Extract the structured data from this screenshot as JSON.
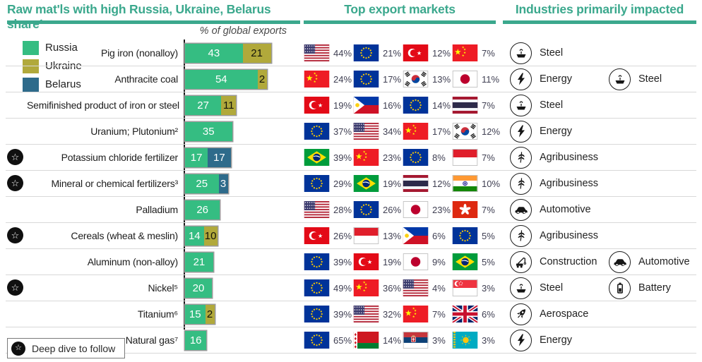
{
  "colors": {
    "accent": "#3BA88D",
    "russia": "#35BD82",
    "ukraine": "#B1A93B",
    "belarus": "#2E6B8B",
    "separator": "#d8d8d8"
  },
  "headers": {
    "col1": "Raw mat'ls with high Russia, Ukraine, Belarus share¹",
    "col2": "Top export markets",
    "col3": "Industries primarily impacted"
  },
  "axis_label": "% of global exports",
  "legend": [
    {
      "label": "Russia",
      "color": "#35BD82"
    },
    {
      "label": "Ukraine",
      "color": "#B1A93B"
    },
    {
      "label": "Belarus",
      "color": "#2E6B8B"
    }
  ],
  "footer": {
    "label": "Deep dive to follow",
    "icon": "deep-dive-star-icon"
  },
  "rows": [
    {
      "starred": false,
      "material": "Pig iron (nonalloy)",
      "segments": [
        {
          "country": "Russia",
          "value": 43
        },
        {
          "country": "Ukraine",
          "value": 21
        }
      ],
      "markets": [
        {
          "flag": "us",
          "share": "44%"
        },
        {
          "flag": "eu",
          "share": "21%"
        },
        {
          "flag": "tr",
          "share": "12%"
        },
        {
          "flag": "cn",
          "share": "7%"
        }
      ],
      "industries": [
        {
          "icon": "steel",
          "label": "Steel"
        }
      ]
    },
    {
      "starred": false,
      "material": "Anthracite coal",
      "segments": [
        {
          "country": "Russia",
          "value": 54
        },
        {
          "country": "Ukraine",
          "value": 2
        }
      ],
      "markets": [
        {
          "flag": "cn",
          "share": "24%"
        },
        {
          "flag": "eu",
          "share": "17%"
        },
        {
          "flag": "kr",
          "share": "13%"
        },
        {
          "flag": "jp",
          "share": "11%"
        }
      ],
      "industries": [
        {
          "icon": "energy",
          "label": "Energy"
        },
        {
          "icon": "steel",
          "label": "Steel"
        }
      ]
    },
    {
      "starred": false,
      "material": "Semifinished product of iron or steel",
      "segments": [
        {
          "country": "Russia",
          "value": 27
        },
        {
          "country": "Ukraine",
          "value": 11
        }
      ],
      "markets": [
        {
          "flag": "tr",
          "share": "19%"
        },
        {
          "flag": "ph",
          "share": "16%"
        },
        {
          "flag": "eu",
          "share": "14%"
        },
        {
          "flag": "th",
          "share": "7%"
        }
      ],
      "industries": [
        {
          "icon": "steel",
          "label": "Steel"
        }
      ]
    },
    {
      "starred": false,
      "material": "Uranium; Plutonium²",
      "segments": [
        {
          "country": "Russia",
          "value": 35
        }
      ],
      "markets": [
        {
          "flag": "eu",
          "share": "37%"
        },
        {
          "flag": "us",
          "share": "34%"
        },
        {
          "flag": "cn",
          "share": "17%"
        },
        {
          "flag": "kr",
          "share": "12%"
        }
      ],
      "industries": [
        {
          "icon": "energy",
          "label": "Energy"
        }
      ]
    },
    {
      "starred": true,
      "material": "Potassium chloride fertilizer",
      "segments": [
        {
          "country": "Russia",
          "value": 17
        },
        {
          "country": "Belarus",
          "value": 17
        }
      ],
      "markets": [
        {
          "flag": "br",
          "share": "39%"
        },
        {
          "flag": "cn",
          "share": "23%"
        },
        {
          "flag": "eu",
          "share": "8%"
        },
        {
          "flag": "id",
          "share": "7%"
        }
      ],
      "industries": [
        {
          "icon": "agribusiness",
          "label": "Agribusiness"
        }
      ]
    },
    {
      "starred": true,
      "material": "Mineral or chemical fertilizers³",
      "segments": [
        {
          "country": "Russia",
          "value": 25
        },
        {
          "country": "Belarus",
          "value": 3
        }
      ],
      "markets": [
        {
          "flag": "eu",
          "share": "29%"
        },
        {
          "flag": "br",
          "share": "19%"
        },
        {
          "flag": "th",
          "share": "12%"
        },
        {
          "flag": "in",
          "share": "10%"
        }
      ],
      "industries": [
        {
          "icon": "agribusiness",
          "label": "Agribusiness"
        }
      ]
    },
    {
      "starred": false,
      "material": "Palladium",
      "segments": [
        {
          "country": "Russia",
          "value": 26
        }
      ],
      "markets": [
        {
          "flag": "us",
          "share": "28%"
        },
        {
          "flag": "eu",
          "share": "26%"
        },
        {
          "flag": "jp",
          "share": "23%"
        },
        {
          "flag": "hk",
          "share": "7%"
        }
      ],
      "industries": [
        {
          "icon": "automotive",
          "label": "Automotive"
        }
      ]
    },
    {
      "starred": true,
      "material": "Cereals (wheat & meslin)",
      "segments": [
        {
          "country": "Russia",
          "value": 14
        },
        {
          "country": "Ukraine",
          "value": 10
        }
      ],
      "markets": [
        {
          "flag": "tr",
          "share": "26%"
        },
        {
          "flag": "id",
          "share": "13%"
        },
        {
          "flag": "ph",
          "share": "6%"
        },
        {
          "flag": "eu",
          "share": "5%"
        }
      ],
      "industries": [
        {
          "icon": "agribusiness",
          "label": "Agribusiness"
        }
      ]
    },
    {
      "starred": false,
      "material": "Aluminum (non-alloy)",
      "segments": [
        {
          "country": "Russia",
          "value": 21
        }
      ],
      "markets": [
        {
          "flag": "eu",
          "share": "39%"
        },
        {
          "flag": "tr",
          "share": "19%"
        },
        {
          "flag": "jp",
          "share": "9%"
        },
        {
          "flag": "br",
          "share": "5%"
        }
      ],
      "industries": [
        {
          "icon": "construction",
          "label": "Construction"
        },
        {
          "icon": "automotive",
          "label": "Automotive"
        }
      ]
    },
    {
      "starred": true,
      "material": "Nickel⁵",
      "segments": [
        {
          "country": "Russia",
          "value": 20
        }
      ],
      "markets": [
        {
          "flag": "eu",
          "share": "49%"
        },
        {
          "flag": "cn",
          "share": "36%"
        },
        {
          "flag": "us",
          "share": "4%"
        },
        {
          "flag": "sg",
          "share": "3%"
        }
      ],
      "industries": [
        {
          "icon": "steel",
          "label": "Steel"
        },
        {
          "icon": "battery",
          "label": "Battery"
        }
      ]
    },
    {
      "starred": false,
      "material": "Titanium⁶",
      "segments": [
        {
          "country": "Russia",
          "value": 15
        },
        {
          "country": "Ukraine",
          "value": 2
        }
      ],
      "markets": [
        {
          "flag": "eu",
          "share": "39%"
        },
        {
          "flag": "us",
          "share": "32%"
        },
        {
          "flag": "cn",
          "share": "7%"
        },
        {
          "flag": "gb",
          "share": "6%"
        }
      ],
      "industries": [
        {
          "icon": "aerospace",
          "label": "Aerospace"
        }
      ]
    },
    {
      "starred": false,
      "material": "Natural gas⁷",
      "segments": [
        {
          "country": "Russia",
          "value": 16
        }
      ],
      "markets": [
        {
          "flag": "eu",
          "share": "65%"
        },
        {
          "flag": "by",
          "share": "14%"
        },
        {
          "flag": "rs",
          "share": "3%"
        },
        {
          "flag": "kz",
          "share": "3%"
        }
      ],
      "industries": [
        {
          "icon": "energy",
          "label": "Energy"
        }
      ]
    }
  ],
  "chart_data": {
    "type": "bar",
    "orientation": "horizontal",
    "stacked": true,
    "title": "Raw mat'ls with high Russia, Ukraine, Belarus share¹",
    "value_label": "% of global exports",
    "xlim": [
      0,
      70
    ],
    "grid": false,
    "legend_position": "top-left",
    "legend": [
      "Russia",
      "Ukraine",
      "Belarus"
    ],
    "categories": [
      "Pig iron (nonalloy)",
      "Anthracite coal",
      "Semifinished product of iron or steel",
      "Uranium; Plutonium²",
      "Potassium chloride fertilizer",
      "Mineral or chemical fertilizers³",
      "Palladium",
      "Cereals (wheat & meslin)",
      "Aluminum (non-alloy)",
      "Nickel⁵",
      "Titanium⁶",
      "Natural gas⁷"
    ],
    "series": [
      {
        "name": "Russia",
        "values": [
          43,
          54,
          27,
          35,
          17,
          25,
          26,
          14,
          21,
          20,
          15,
          16
        ]
      },
      {
        "name": "Ukraine",
        "values": [
          21,
          2,
          11,
          0,
          0,
          0,
          0,
          10,
          0,
          0,
          2,
          0
        ]
      },
      {
        "name": "Belarus",
        "values": [
          0,
          0,
          0,
          0,
          17,
          3,
          0,
          0,
          0,
          0,
          0,
          0
        ]
      }
    ],
    "deep_dive_flagged": [
      "Potassium chloride fertilizer",
      "Mineral or chemical fertilizers³",
      "Cereals (wheat & meslin)",
      "Nickel⁵"
    ],
    "annotations": [
      "Deep dive to follow"
    ]
  }
}
